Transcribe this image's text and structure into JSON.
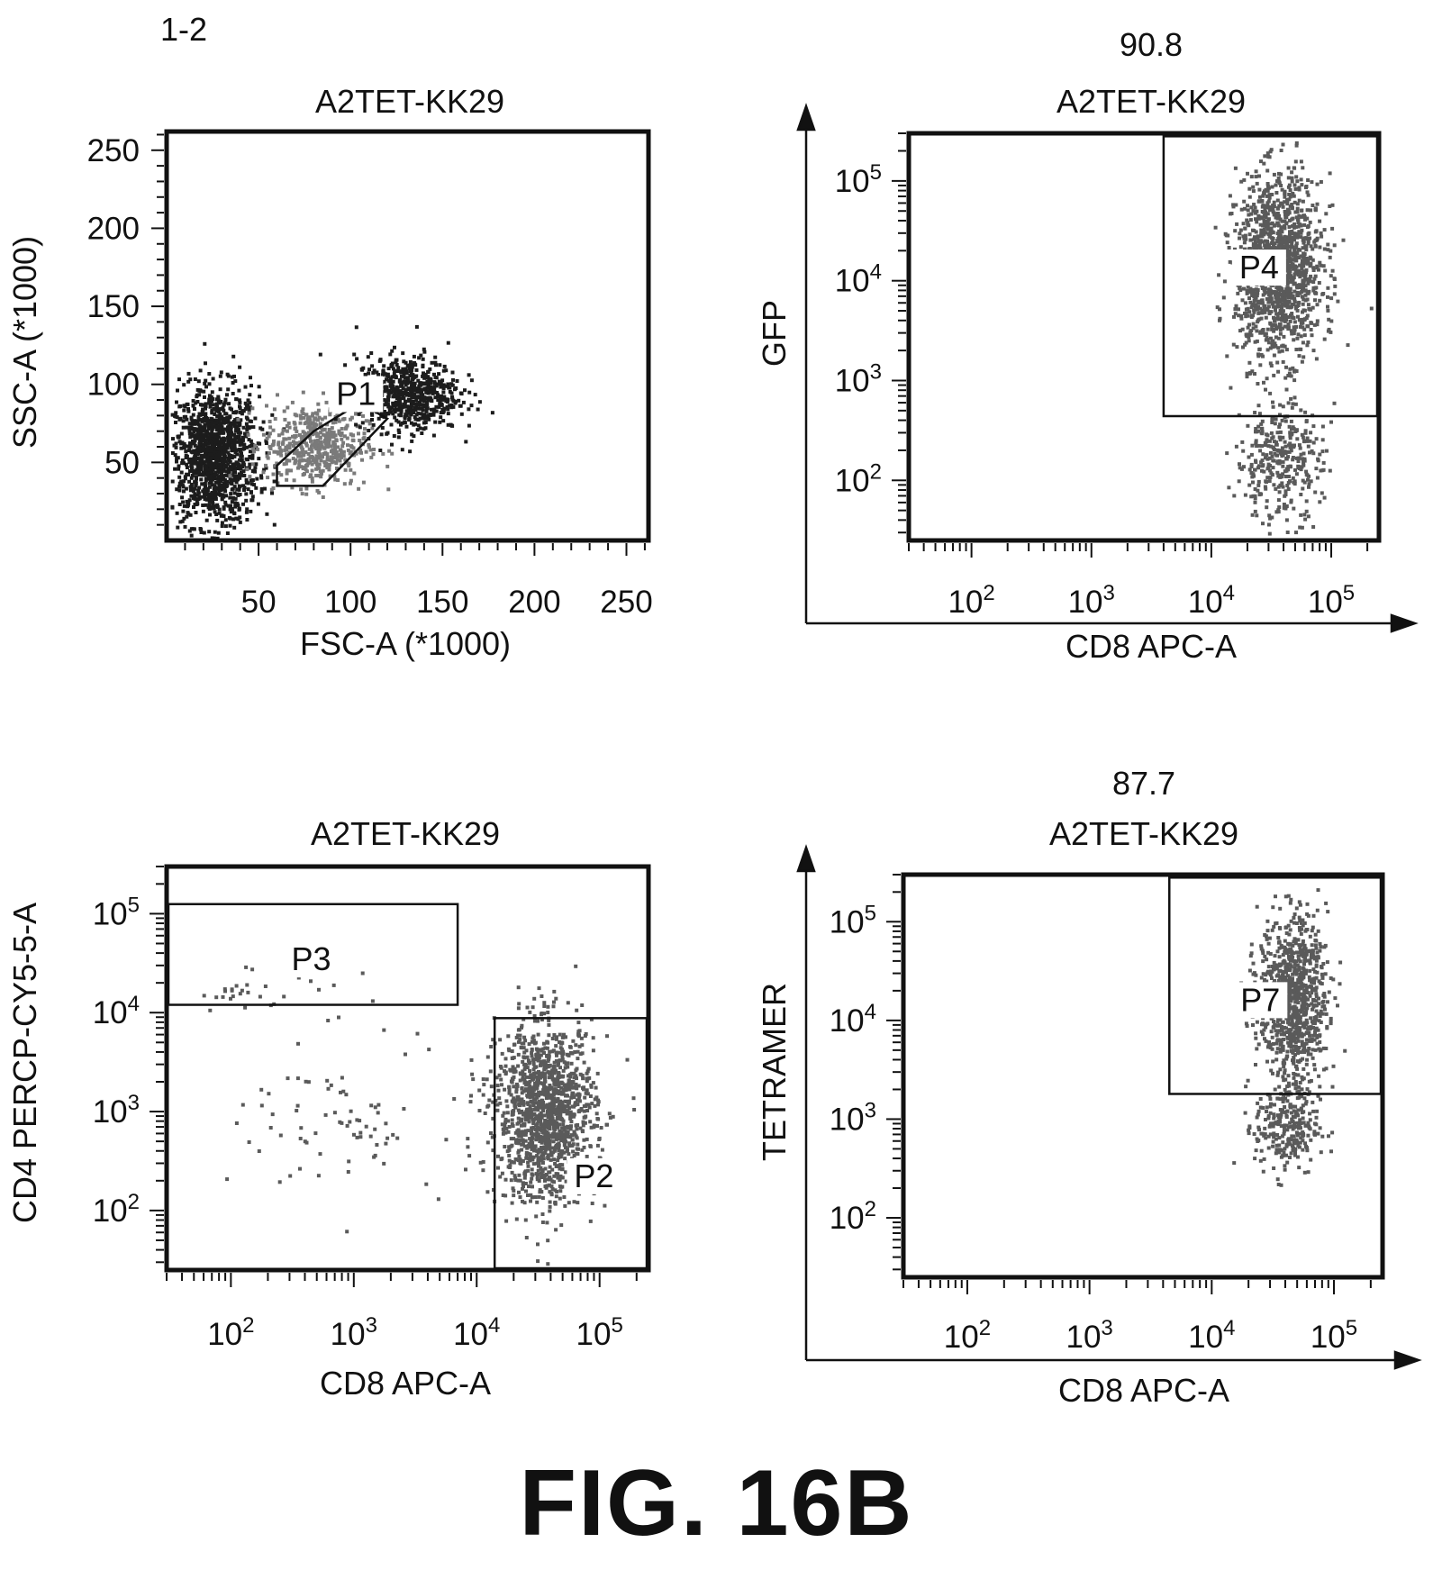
{
  "figure_label": "FIG. 16B",
  "chart_data": [
    {
      "id": "fsc_ssc",
      "type": "scatter",
      "corner_label": "1-2",
      "title": "A2TET-KK29",
      "xlabel": "FSC-A (*1000)",
      "ylabel": "SSC-A (*1000)",
      "xscale": "linear",
      "yscale": "linear",
      "xlim": [
        0,
        262
      ],
      "ylim": [
        0,
        262
      ],
      "xticks": [
        "50",
        "100",
        "150",
        "200",
        "250"
      ],
      "xtick_values": [
        50,
        100,
        150,
        200,
        250
      ],
      "yticks": [
        "50",
        "100",
        "150",
        "200",
        "250"
      ],
      "ytick_values": [
        50,
        100,
        150,
        200,
        250
      ],
      "populations": [
        {
          "cx": 25,
          "cy": 55,
          "sx": 12,
          "sy": 22,
          "n": 1300,
          "color": "#1c1c1c"
        },
        {
          "cx": 80,
          "cy": 62,
          "sx": 14,
          "sy": 13,
          "n": 500,
          "color": "#7a7a7a"
        },
        {
          "cx": 130,
          "cy": 95,
          "sx": 14,
          "sy": 12,
          "n": 650,
          "color": "#1c1c1c"
        }
      ],
      "gates": [
        {
          "name": "P1",
          "shape": "polygon",
          "points": [
            [
              60,
              35
            ],
            [
              85,
              35
            ],
            [
              120,
              78
            ],
            [
              105,
              88
            ],
            [
              80,
              70
            ],
            [
              60,
              48
            ]
          ],
          "label_at": [
            103,
            88
          ]
        }
      ]
    },
    {
      "id": "cd8_gfp",
      "type": "scatter",
      "summary_value": "90.8",
      "title": "A2TET-KK29",
      "xlabel": "CD8 APC-A",
      "ylabel": "GFP",
      "xscale": "log",
      "yscale": "log",
      "xlim": [
        30,
        250000
      ],
      "ylim": [
        25,
        300000
      ],
      "xticks": [
        {
          "base": "10",
          "exp": "2"
        },
        {
          "base": "10",
          "exp": "3"
        },
        {
          "base": "10",
          "exp": "4"
        },
        {
          "base": "10",
          "exp": "5"
        }
      ],
      "xtick_values": [
        100,
        1000,
        10000,
        100000
      ],
      "yticks": [
        {
          "base": "10",
          "exp": "2"
        },
        {
          "base": "10",
          "exp": "3"
        },
        {
          "base": "10",
          "exp": "4"
        },
        {
          "base": "10",
          "exp": "5"
        }
      ],
      "ytick_values": [
        100,
        1000,
        10000,
        100000
      ],
      "populations": [
        {
          "lx": 4.55,
          "ly": 4.15,
          "sx": 0.18,
          "sy": 0.45,
          "n": 1400,
          "color": "#5a5a5a"
        },
        {
          "lx": 4.55,
          "ly": 2.2,
          "sx": 0.18,
          "sy": 0.3,
          "n": 350,
          "color": "#5a5a5a"
        }
      ],
      "gates": [
        {
          "name": "P4",
          "shape": "rect",
          "x": [
            4000,
            250000
          ],
          "y": [
            440,
            280000
          ],
          "label_at": [
            25000,
            11000
          ]
        }
      ]
    },
    {
      "id": "cd8_cd4",
      "type": "scatter",
      "title": "A2TET-KK29",
      "xlabel": "CD8 APC-A",
      "ylabel": "CD4 PERCP-CY5-5-A",
      "xscale": "log",
      "yscale": "log",
      "xlim": [
        30,
        250000
      ],
      "ylim": [
        25,
        300000
      ],
      "xticks": [
        {
          "base": "10",
          "exp": "2"
        },
        {
          "base": "10",
          "exp": "3"
        },
        {
          "base": "10",
          "exp": "4"
        },
        {
          "base": "10",
          "exp": "5"
        }
      ],
      "xtick_values": [
        100,
        1000,
        10000,
        100000
      ],
      "yticks": [
        {
          "base": "10",
          "exp": "2"
        },
        {
          "base": "10",
          "exp": "3"
        },
        {
          "base": "10",
          "exp": "4"
        },
        {
          "base": "10",
          "exp": "5"
        }
      ],
      "ytick_values": [
        100,
        1000,
        10000,
        100000
      ],
      "populations": [
        {
          "lx": 4.55,
          "ly": 3.0,
          "sx": 0.2,
          "sy": 0.45,
          "n": 1400,
          "color": "#5a5a5a"
        },
        {
          "lx": 3.1,
          "ly": 2.9,
          "sx": 0.5,
          "sy": 0.4,
          "n": 90,
          "color": "#5a5a5a"
        },
        {
          "lx": 2.2,
          "ly": 4.25,
          "sx": 0.45,
          "sy": 0.1,
          "n": 30,
          "color": "#5a5a5a"
        }
      ],
      "gates": [
        {
          "name": "P3",
          "shape": "rect",
          "x": [
            30,
            7000
          ],
          "y": [
            12000,
            125000
          ],
          "label_at": [
            450,
            28000
          ]
        },
        {
          "name": "P2",
          "shape": "rect",
          "x": [
            14000,
            250000
          ],
          "y": [
            25,
            8800
          ],
          "label_at": [
            90000,
            180
          ]
        }
      ]
    },
    {
      "id": "cd8_tetramer",
      "type": "scatter",
      "summary_value": "87.7",
      "title": "A2TET-KK29",
      "xlabel": "CD8 APC-A",
      "ylabel": "TETRAMER",
      "xscale": "log",
      "yscale": "log",
      "xlim": [
        30,
        250000
      ],
      "ylim": [
        25,
        300000
      ],
      "xticks": [
        {
          "base": "10",
          "exp": "2"
        },
        {
          "base": "10",
          "exp": "3"
        },
        {
          "base": "10",
          "exp": "4"
        },
        {
          "base": "10",
          "exp": "5"
        }
      ],
      "xtick_values": [
        100,
        1000,
        10000,
        100000
      ],
      "yticks": [
        {
          "base": "10",
          "exp": "2"
        },
        {
          "base": "10",
          "exp": "3"
        },
        {
          "base": "10",
          "exp": "4"
        },
        {
          "base": "10",
          "exp": "5"
        }
      ],
      "ytick_values": [
        100,
        1000,
        10000,
        100000
      ],
      "populations": [
        {
          "lx": 4.65,
          "ly": 4.25,
          "sx": 0.14,
          "sy": 0.4,
          "n": 950,
          "color": "#5a5a5a"
        },
        {
          "lx": 4.6,
          "ly": 2.95,
          "sx": 0.13,
          "sy": 0.25,
          "n": 280,
          "color": "#5a5a5a"
        }
      ],
      "gates": [
        {
          "name": "P7",
          "shape": "rect",
          "x": [
            4500,
            250000
          ],
          "y": [
            1800,
            280000
          ],
          "label_at": [
            25000,
            13000
          ]
        }
      ]
    }
  ]
}
